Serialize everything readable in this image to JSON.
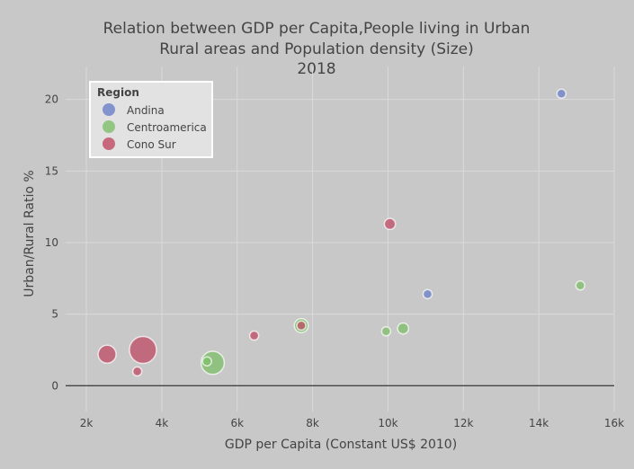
{
  "chart_data": {
    "type": "scatter",
    "title_lines": [
      "Relation between GDP per Capita,People living in Urban",
      "Rural areas and Population density (Size)",
      "2018"
    ],
    "xlabel": "GDP per Capita (Constant US$ 2010)",
    "ylabel": "Urban/Rural Ratio %",
    "xlim": [
      1450,
      16000
    ],
    "ylim": [
      -1.8,
      21.8
    ],
    "xticks": [
      2000,
      4000,
      6000,
      8000,
      10000,
      12000,
      14000,
      16000
    ],
    "xtick_labels": [
      "2k",
      "4k",
      "6k",
      "8k",
      "10k",
      "12k",
      "14k",
      "16k"
    ],
    "yticks": [
      0,
      5,
      10,
      15,
      20
    ],
    "ytick_labels": [
      "0",
      "5",
      "10",
      "15",
      "20"
    ],
    "grid": true,
    "legend": {
      "title": "Region",
      "placement": "top-left",
      "entries": [
        {
          "name": "Andina",
          "color": "#6b7fc8"
        },
        {
          "name": "Centroamerica",
          "color": "#7fbf6a"
        },
        {
          "name": "Cono Sur",
          "color": "#c04b64"
        }
      ]
    },
    "series": [
      {
        "name": "Andina",
        "color": "#6b7fc8",
        "points": [
          {
            "x": 14600,
            "y": 20.4,
            "size": 1
          },
          {
            "x": 11050,
            "y": 6.4,
            "size": 1
          }
        ]
      },
      {
        "name": "Centroamerica",
        "color": "#7fbf6a",
        "points": [
          {
            "x": 15100,
            "y": 7.0,
            "size": 1
          },
          {
            "x": 10400,
            "y": 4.0,
            "size": 1.5
          },
          {
            "x": 9950,
            "y": 3.8,
            "size": 1
          },
          {
            "x": 7700,
            "y": 4.2,
            "size": 2.4
          },
          {
            "x": 5350,
            "y": 1.6,
            "size": 6.6
          },
          {
            "x": 5200,
            "y": 1.7,
            "size": 1
          }
        ]
      },
      {
        "name": "Cono Sur",
        "color": "#c04b64",
        "points": [
          {
            "x": 10050,
            "y": 11.3,
            "size": 1.5
          },
          {
            "x": 7700,
            "y": 4.2,
            "size": 1
          },
          {
            "x": 6450,
            "y": 3.5,
            "size": 1
          },
          {
            "x": 3500,
            "y": 2.5,
            "size": 9
          },
          {
            "x": 2550,
            "y": 2.2,
            "size": 4
          },
          {
            "x": 3350,
            "y": 1.0,
            "size": 1
          }
        ]
      }
    ]
  }
}
